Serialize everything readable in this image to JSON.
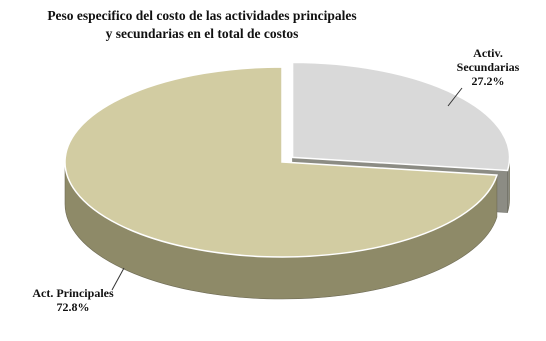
{
  "chart_data": {
    "type": "pie",
    "title": [
      "Peso especifico del costo de las actividades  principales",
      "y secundarias   en el total de costos"
    ],
    "slices": [
      {
        "label": [
          "Activ.",
          "Secundarias"
        ],
        "value": 27.2,
        "value_label": "27.2%",
        "color": "#d9d9d9",
        "side_color": "#8a8a80",
        "exploded": true
      },
      {
        "label": [
          "Act. Principales"
        ],
        "value": 72.8,
        "value_label": "72.8%",
        "color": "#d2cca2",
        "side_color": "#8e8a68",
        "exploded": false
      }
    ],
    "style": "3d-exploded",
    "legend": "none"
  }
}
